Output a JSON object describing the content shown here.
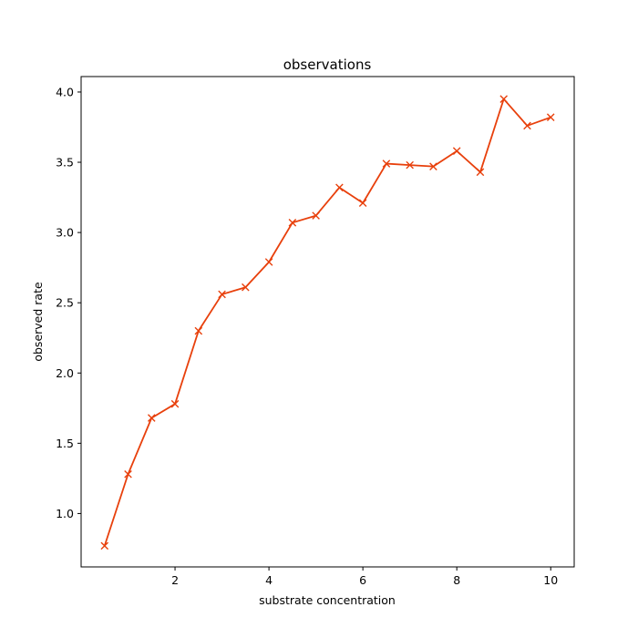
{
  "chart_data": {
    "type": "line",
    "title": "observations",
    "xlabel": "substrate concentration",
    "ylabel": "observed rate",
    "xlim": [
      0.0,
      10.5
    ],
    "ylim": [
      0.62,
      4.11
    ],
    "xticks": [
      2,
      4,
      6,
      8,
      10
    ],
    "xtick_labels": [
      "2",
      "4",
      "6",
      "8",
      "10"
    ],
    "yticks": [
      1.0,
      1.5,
      2.0,
      2.5,
      3.0,
      3.5,
      4.0
    ],
    "ytick_labels": [
      "1.0",
      "1.5",
      "2.0",
      "2.5",
      "3.0",
      "3.5",
      "4.0"
    ],
    "grid": false,
    "series": [
      {
        "marker": "x",
        "color": "#e8400c",
        "x": [
          0.5,
          1.0,
          1.5,
          2.0,
          2.5,
          3.0,
          3.5,
          4.0,
          4.5,
          5.0,
          5.5,
          6.0,
          6.5,
          7.0,
          7.5,
          8.0,
          8.5,
          9.0,
          9.5,
          10.0
        ],
        "y": [
          0.77,
          1.28,
          1.68,
          1.78,
          2.3,
          2.56,
          2.61,
          2.79,
          3.07,
          3.12,
          3.32,
          3.21,
          3.49,
          3.48,
          3.47,
          3.58,
          3.43,
          3.95,
          3.76,
          3.82
        ]
      }
    ]
  }
}
